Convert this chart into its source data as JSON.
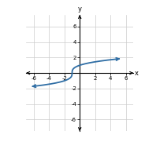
{
  "title": "",
  "xlabel": "x",
  "ylabel": "y",
  "xlim": [
    -7,
    7
  ],
  "ylim": [
    -7.5,
    7.5
  ],
  "xticks": [
    -6,
    -4,
    -2,
    2,
    4,
    6
  ],
  "yticks": [
    -6,
    -4,
    -2,
    2,
    4,
    6
  ],
  "xtick_labels": [
    "-6",
    "-4",
    "-2",
    "2",
    "4",
    "6"
  ],
  "ytick_labels": [
    "-6",
    "-4",
    "-2",
    "2",
    "4",
    "6"
  ],
  "curve_color": "#2e6da4",
  "curve_linewidth": 1.3,
  "background_color": "#ffffff",
  "grid_color": "#cccccc",
  "x_start": -5.8,
  "x_end": 4.8
}
